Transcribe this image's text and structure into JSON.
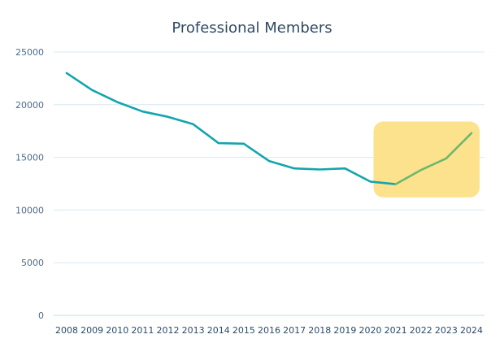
{
  "chart_data": {
    "type": "line",
    "title": "Professional Members",
    "xlabel": "",
    "ylabel": "",
    "x": [
      "2008",
      "2009",
      "2010",
      "2011",
      "2012",
      "2013",
      "2014",
      "2015",
      "2016",
      "2017",
      "2018",
      "2019",
      "2020",
      "2021",
      "2022",
      "2023",
      "2024"
    ],
    "series": [
      {
        "values": [
          23000,
          21400,
          20250,
          19350,
          18850,
          18150,
          16350,
          16300,
          14650,
          13950,
          13850,
          13950,
          12700,
          12450,
          13800,
          14900,
          17300
        ],
        "color": "#13a5ad",
        "highlight_from_index": 13,
        "highlight_color": "#6db86b"
      }
    ],
    "ylim": [
      0,
      25000
    ],
    "yticks": [
      0,
      5000,
      10000,
      15000,
      20000,
      25000
    ],
    "grid": true,
    "legend": "none",
    "highlight": {
      "x_from": "2020",
      "x_to": "2024",
      "color": "#fde28e"
    },
    "axis_color": "#4d6b8a",
    "grid_color": "#d6e8f2"
  }
}
